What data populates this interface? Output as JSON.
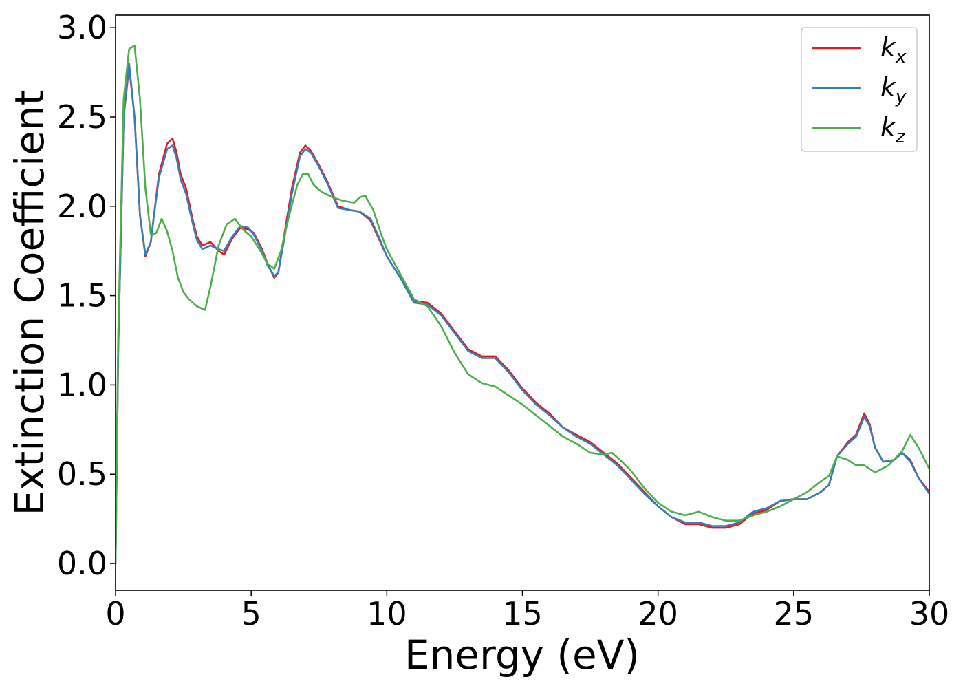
{
  "chart_data": {
    "type": "line",
    "title": "",
    "xlabel": "Energy (eV)",
    "ylabel": "Extinction Coefficient",
    "xlim": [
      0,
      30
    ],
    "ylim": [
      -0.15,
      3.07
    ],
    "xticks": [
      0,
      5,
      10,
      15,
      20,
      25,
      30
    ],
    "xtick_labels": [
      "0",
      "5",
      "10",
      "15",
      "20",
      "25",
      "30"
    ],
    "yticks": [
      0.0,
      0.5,
      1.0,
      1.5,
      2.0,
      2.5,
      3.0
    ],
    "ytick_labels": [
      "0.0",
      "0.5",
      "1.0",
      "1.5",
      "2.0",
      "2.5",
      "3.0"
    ],
    "grid": false,
    "legend_position": "top-right",
    "series": [
      {
        "name": "k",
        "subscript": "x",
        "color": "#e41a1c",
        "x": [
          0,
          0.1,
          0.3,
          0.5,
          0.7,
          0.9,
          1.1,
          1.3,
          1.4,
          1.6,
          1.9,
          2.1,
          2.25,
          2.4,
          2.6,
          2.85,
          3.0,
          3.2,
          3.5,
          3.8,
          4.0,
          4.3,
          4.6,
          4.9,
          5.1,
          5.4,
          5.6,
          5.85,
          6.0,
          6.2,
          6.5,
          6.8,
          7.0,
          7.2,
          7.5,
          7.8,
          8.2,
          8.6,
          9.0,
          9.4,
          9.7,
          10.0,
          10.5,
          11.0,
          11.5,
          12.0,
          12.5,
          13.0,
          13.5,
          14.0,
          14.5,
          15.0,
          15.5,
          16.0,
          16.5,
          17.0,
          17.5,
          18.0,
          18.5,
          19.0,
          19.5,
          20.0,
          20.5,
          21.0,
          21.5,
          22.0,
          22.5,
          23.0,
          23.5,
          24.0,
          24.5,
          25.0,
          25.5,
          26.0,
          26.3,
          26.6,
          27.0,
          27.3,
          27.6,
          27.8,
          28.0,
          28.3,
          28.7,
          29.0,
          29.3,
          29.6,
          30.0
        ],
        "y": [
          0.0,
          1.2,
          2.5,
          2.78,
          2.5,
          1.95,
          1.72,
          1.8,
          1.93,
          2.18,
          2.35,
          2.38,
          2.3,
          2.18,
          2.1,
          1.92,
          1.83,
          1.78,
          1.8,
          1.75,
          1.73,
          1.82,
          1.88,
          1.87,
          1.85,
          1.76,
          1.68,
          1.6,
          1.63,
          1.82,
          2.1,
          2.3,
          2.34,
          2.31,
          2.23,
          2.14,
          2.0,
          1.98,
          1.97,
          1.92,
          1.82,
          1.72,
          1.6,
          1.47,
          1.46,
          1.4,
          1.3,
          1.2,
          1.16,
          1.16,
          1.08,
          0.98,
          0.9,
          0.84,
          0.76,
          0.72,
          0.68,
          0.62,
          0.56,
          0.48,
          0.4,
          0.32,
          0.26,
          0.22,
          0.22,
          0.2,
          0.2,
          0.22,
          0.28,
          0.3,
          0.35,
          0.36,
          0.36,
          0.4,
          0.44,
          0.6,
          0.68,
          0.72,
          0.84,
          0.78,
          0.65,
          0.57,
          0.58,
          0.62,
          0.58,
          0.48,
          0.4
        ]
      },
      {
        "name": "k",
        "subscript": "y",
        "color": "#377eb8",
        "x": [
          0,
          0.1,
          0.3,
          0.5,
          0.7,
          0.9,
          1.1,
          1.3,
          1.4,
          1.6,
          1.9,
          2.1,
          2.25,
          2.4,
          2.6,
          2.85,
          3.0,
          3.2,
          3.5,
          3.8,
          4.0,
          4.3,
          4.6,
          4.9,
          5.1,
          5.4,
          5.6,
          5.85,
          6.0,
          6.2,
          6.5,
          6.8,
          7.0,
          7.2,
          7.5,
          7.8,
          8.2,
          8.6,
          9.0,
          9.4,
          9.7,
          10.0,
          10.5,
          11.0,
          11.5,
          12.0,
          12.5,
          13.0,
          13.5,
          14.0,
          14.5,
          15.0,
          15.5,
          16.0,
          16.5,
          17.0,
          17.5,
          18.0,
          18.5,
          19.0,
          19.5,
          20.0,
          20.5,
          21.0,
          21.5,
          22.0,
          22.5,
          23.0,
          23.5,
          24.0,
          24.5,
          25.0,
          25.5,
          26.0,
          26.3,
          26.6,
          27.0,
          27.3,
          27.6,
          27.8,
          28.0,
          28.3,
          28.7,
          29.0,
          29.3,
          29.6,
          30.0
        ],
        "y": [
          0.0,
          1.2,
          2.5,
          2.8,
          2.5,
          1.95,
          1.73,
          1.8,
          1.93,
          2.16,
          2.32,
          2.34,
          2.27,
          2.15,
          2.07,
          1.9,
          1.81,
          1.76,
          1.78,
          1.76,
          1.75,
          1.83,
          1.89,
          1.88,
          1.84,
          1.75,
          1.67,
          1.61,
          1.63,
          1.8,
          2.07,
          2.28,
          2.32,
          2.3,
          2.22,
          2.13,
          1.99,
          1.98,
          1.97,
          1.93,
          1.83,
          1.72,
          1.6,
          1.46,
          1.45,
          1.39,
          1.29,
          1.19,
          1.15,
          1.15,
          1.07,
          0.97,
          0.89,
          0.83,
          0.76,
          0.71,
          0.67,
          0.61,
          0.55,
          0.47,
          0.39,
          0.32,
          0.26,
          0.23,
          0.23,
          0.21,
          0.21,
          0.23,
          0.29,
          0.31,
          0.35,
          0.36,
          0.36,
          0.4,
          0.44,
          0.6,
          0.67,
          0.71,
          0.82,
          0.77,
          0.65,
          0.57,
          0.58,
          0.62,
          0.57,
          0.48,
          0.39
        ]
      },
      {
        "name": "k",
        "subscript": "z",
        "color": "#4daf4a",
        "x": [
          0,
          0.1,
          0.3,
          0.5,
          0.7,
          0.9,
          1.1,
          1.3,
          1.5,
          1.7,
          1.9,
          2.1,
          2.3,
          2.5,
          2.7,
          3.0,
          3.3,
          3.5,
          3.8,
          4.1,
          4.4,
          4.7,
          5.0,
          5.3,
          5.6,
          5.85,
          6.1,
          6.4,
          6.7,
          6.9,
          7.1,
          7.3,
          7.6,
          8.0,
          8.4,
          8.8,
          9.0,
          9.2,
          9.5,
          9.8,
          10.0,
          10.5,
          11.0,
          11.5,
          12.0,
          12.5,
          13.0,
          13.5,
          14.0,
          14.5,
          15.0,
          15.5,
          16.0,
          16.5,
          17.0,
          17.5,
          18.0,
          18.3,
          18.6,
          19.0,
          19.5,
          20.0,
          20.5,
          21.0,
          21.5,
          22.0,
          22.5,
          23.0,
          23.5,
          24.0,
          24.5,
          25.0,
          25.5,
          26.0,
          26.3,
          26.6,
          27.0,
          27.3,
          27.6,
          28.0,
          28.5,
          29.0,
          29.3,
          29.6,
          30.0
        ],
        "y": [
          0.0,
          1.3,
          2.6,
          2.88,
          2.9,
          2.6,
          2.1,
          1.84,
          1.85,
          1.93,
          1.86,
          1.75,
          1.6,
          1.52,
          1.48,
          1.44,
          1.42,
          1.55,
          1.78,
          1.9,
          1.93,
          1.87,
          1.83,
          1.76,
          1.68,
          1.65,
          1.75,
          1.95,
          2.12,
          2.18,
          2.18,
          2.12,
          2.08,
          2.05,
          2.03,
          2.02,
          2.05,
          2.06,
          1.98,
          1.84,
          1.76,
          1.62,
          1.48,
          1.44,
          1.33,
          1.18,
          1.06,
          1.01,
          0.99,
          0.94,
          0.89,
          0.83,
          0.77,
          0.71,
          0.67,
          0.62,
          0.61,
          0.62,
          0.58,
          0.52,
          0.42,
          0.34,
          0.29,
          0.27,
          0.29,
          0.26,
          0.24,
          0.24,
          0.27,
          0.29,
          0.32,
          0.36,
          0.4,
          0.46,
          0.49,
          0.6,
          0.58,
          0.55,
          0.55,
          0.51,
          0.55,
          0.63,
          0.72,
          0.65,
          0.53
        ]
      }
    ]
  }
}
